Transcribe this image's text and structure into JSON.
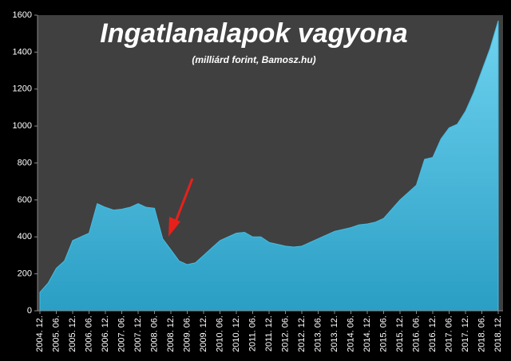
{
  "chart_data": {
    "type": "area",
    "title": "Ingatlanalapok vagyona",
    "subtitle": "(milliárd forint, Bamosz.hu)",
    "categories": [
      "2004. 12.",
      null,
      "2005. 06.",
      null,
      "2005. 12.",
      null,
      "2006. 06.",
      null,
      "2006. 12.",
      null,
      "2007. 06.",
      null,
      "2007. 12.",
      null,
      "2008. 06.",
      null,
      "2008. 12.",
      null,
      "2009. 06.",
      null,
      "2009. 12.",
      null,
      "2010. 06.",
      null,
      "2010. 12.",
      null,
      "2011. 06.",
      null,
      "2011. 12.",
      null,
      "2012. 06.",
      null,
      "2012. 12.",
      null,
      "2013. 06.",
      null,
      "2013. 12.",
      null,
      "2014. 06.",
      null,
      "2014. 12.",
      null,
      "2015. 06.",
      null,
      "2015. 12.",
      null,
      "2016. 06.",
      null,
      "2016. 12.",
      null,
      "2017. 06.",
      null,
      "2017. 12.",
      null,
      "2018. 06.",
      null,
      "2018. 12."
    ],
    "values": [
      100,
      150,
      230,
      270,
      380,
      400,
      420,
      580,
      560,
      545,
      550,
      560,
      580,
      560,
      555,
      390,
      330,
      270,
      250,
      260,
      300,
      340,
      380,
      400,
      420,
      425,
      400,
      400,
      370,
      360,
      350,
      345,
      350,
      370,
      390,
      410,
      430,
      440,
      450,
      465,
      470,
      480,
      500,
      550,
      600,
      640,
      680,
      820,
      830,
      930,
      990,
      1010,
      1080,
      1180,
      1300,
      1420,
      1570
    ],
    "color": "#45bde3",
    "ylim": [
      0,
      1600
    ],
    "yticks": [
      0,
      200,
      400,
      600,
      800,
      1000,
      1200,
      1400,
      1600
    ],
    "grid": false
  }
}
